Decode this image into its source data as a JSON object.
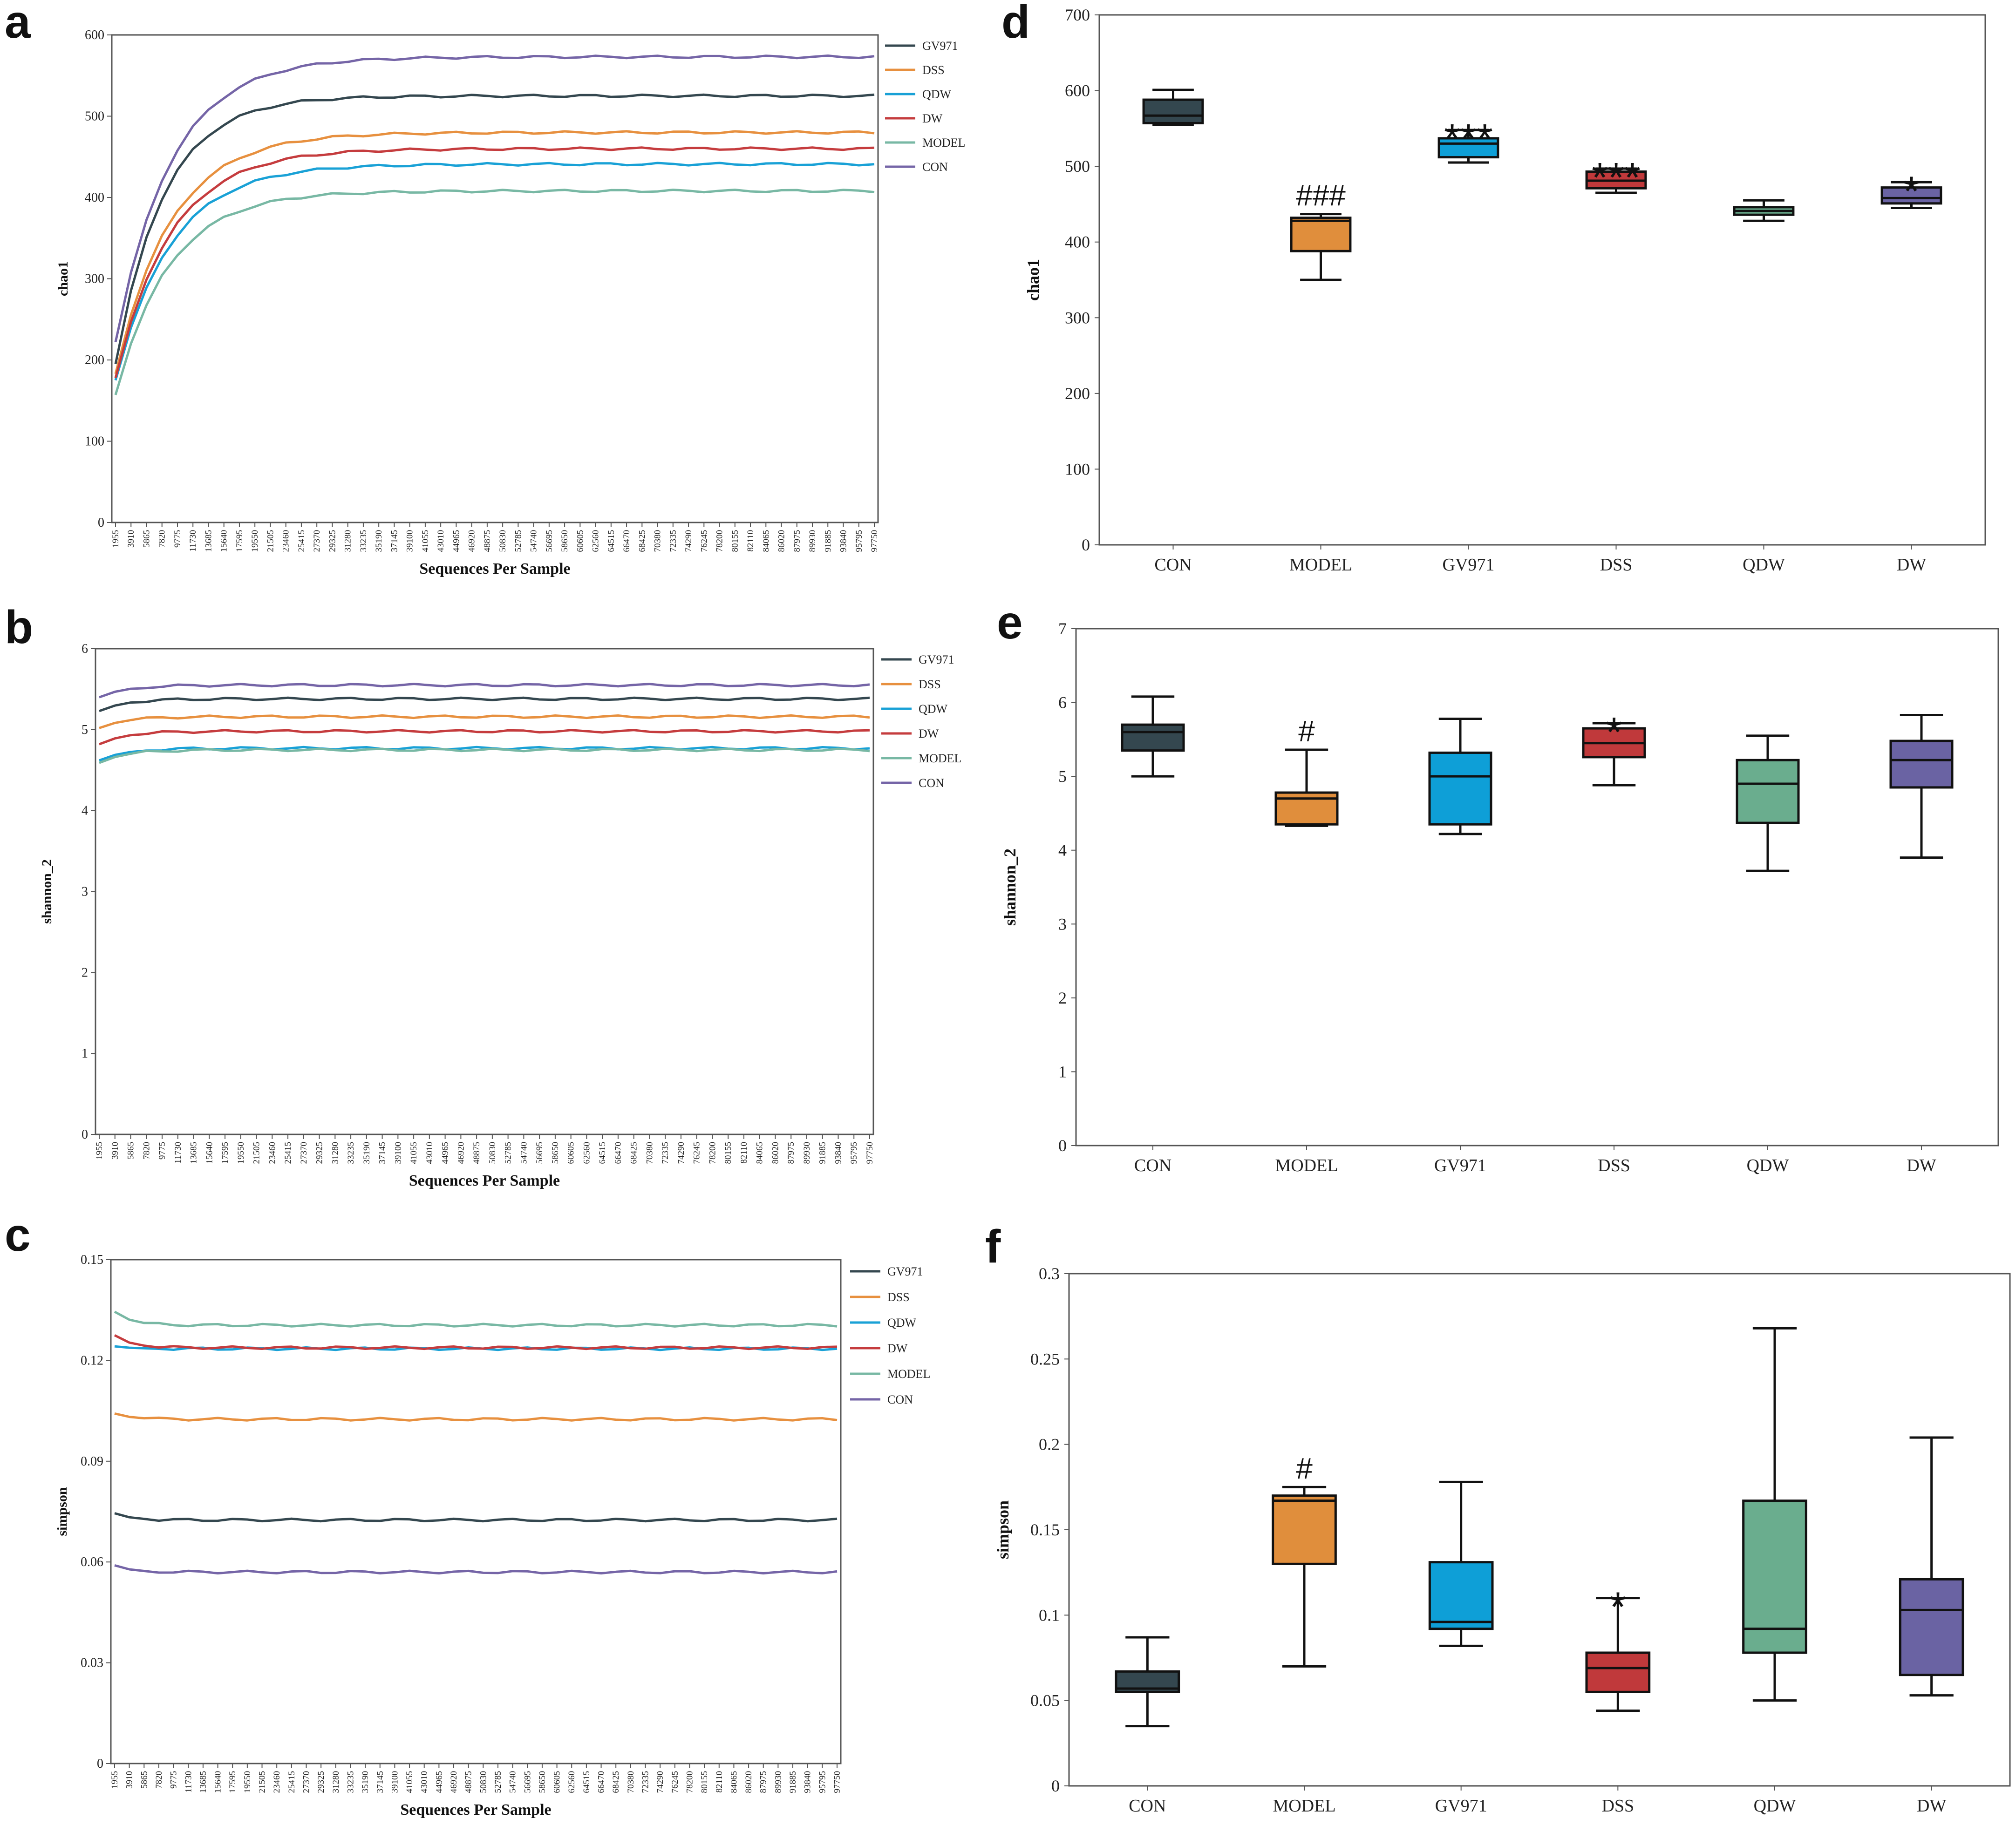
{
  "panels": {
    "a": "a",
    "b": "b",
    "c": "c",
    "d": "d",
    "e": "e",
    "f": "f"
  },
  "colors": {
    "GV971": "#34474f",
    "DSS": "#e7903f",
    "QDW": "#19a1d6",
    "DW": "#c53c3e",
    "MODEL": "#78b8a4",
    "CON": "#7565a7"
  },
  "box_fills": {
    "CON": "#34474f",
    "MODEL": "#e08e3c",
    "GV971": "#0e9fd7",
    "DSS": "#c0393b",
    "QDW": "#6aad8e",
    "DW": "#6a63a3"
  },
  "chart_data": [
    {
      "id": "a",
      "type": "line",
      "xlabel": "Sequences Per Sample",
      "ylabel": "chao1",
      "ylim": [
        0,
        600
      ],
      "yticks": [
        0,
        100,
        200,
        300,
        400,
        500,
        600
      ],
      "x_ticks": [
        "1955",
        "3910",
        "5865",
        "7820",
        "9775",
        "11730",
        "13685",
        "15640",
        "17595",
        "19550",
        "21505",
        "23460",
        "25415",
        "27370",
        "29325",
        "31280",
        "33235",
        "35190",
        "37145",
        "39100",
        "41055",
        "43010",
        "44965",
        "46920",
        "48875",
        "50830",
        "52785",
        "54740",
        "56695",
        "58650",
        "60605",
        "62560",
        "64515",
        "66470",
        "68425",
        "70380",
        "72335",
        "74290",
        "76245",
        "78200",
        "80155",
        "82110",
        "84065",
        "86020",
        "87975",
        "89930",
        "91885",
        "93840",
        "95795",
        "97750"
      ],
      "legend": [
        "GV971",
        "DSS",
        "QDW",
        "DW",
        "MODEL",
        "CON"
      ],
      "series": [
        {
          "name": "GV971",
          "start": 195,
          "plateau": 525,
          "k": 0.32
        },
        {
          "name": "DSS",
          "start": 183,
          "plateau": 480,
          "k": 0.28
        },
        {
          "name": "QDW",
          "start": 175,
          "plateau": 441,
          "k": 0.28
        },
        {
          "name": "DW",
          "start": 178,
          "plateau": 460,
          "k": 0.28
        },
        {
          "name": "MODEL",
          "start": 157,
          "plateau": 408,
          "k": 0.29
        },
        {
          "name": "CON",
          "start": 222,
          "plateau": 573,
          "k": 0.28
        }
      ]
    },
    {
      "id": "b",
      "type": "line",
      "xlabel": "Sequences Per Sample",
      "ylabel": "shannon_2",
      "ylim": [
        0,
        6
      ],
      "yticks": [
        0,
        1,
        2,
        3,
        4,
        5,
        6
      ],
      "x_ticks": [
        "1955",
        "3910",
        "5865",
        "7820",
        "9775",
        "11730",
        "13685",
        "15640",
        "17595",
        "19550",
        "21505",
        "23460",
        "25415",
        "27370",
        "29325",
        "31280",
        "33235",
        "35190",
        "37145",
        "39100",
        "41055",
        "43010",
        "44965",
        "46920",
        "48875",
        "50830",
        "52785",
        "54740",
        "56695",
        "58650",
        "60605",
        "62560",
        "64515",
        "66470",
        "68425",
        "70380",
        "72335",
        "74290",
        "76245",
        "78200",
        "80155",
        "82110",
        "84065",
        "86020",
        "87975",
        "89930",
        "91885",
        "93840",
        "95795",
        "97750"
      ],
      "legend": [
        "GV971",
        "DSS",
        "QDW",
        "DW",
        "MODEL",
        "CON"
      ],
      "series": [
        {
          "name": "GV971",
          "start": 5.23,
          "plateau": 5.38,
          "k": 0.6
        },
        {
          "name": "DSS",
          "start": 5.02,
          "plateau": 5.16,
          "k": 0.6
        },
        {
          "name": "QDW",
          "start": 4.62,
          "plateau": 4.77,
          "k": 0.6
        },
        {
          "name": "DW",
          "start": 4.82,
          "plateau": 4.98,
          "k": 0.6
        },
        {
          "name": "MODEL",
          "start": 4.59,
          "plateau": 4.75,
          "k": 0.6
        },
        {
          "name": "CON",
          "start": 5.4,
          "plateau": 5.55,
          "k": 0.6
        }
      ]
    },
    {
      "id": "c",
      "type": "line",
      "xlabel": "Sequences Per Sample",
      "ylabel": "simpson",
      "ylim": [
        0,
        0.15
      ],
      "yticks": [
        0,
        0.03,
        0.06,
        0.09,
        0.12,
        0.15
      ],
      "x_ticks": [
        "1955",
        "3910",
        "5865",
        "7820",
        "9775",
        "11730",
        "13685",
        "15640",
        "17595",
        "19550",
        "21505",
        "23460",
        "25415",
        "27370",
        "29325",
        "31280",
        "33235",
        "35190",
        "37145",
        "39100",
        "41055",
        "43010",
        "44965",
        "46920",
        "48875",
        "50830",
        "52785",
        "54740",
        "56695",
        "58650",
        "60605",
        "62560",
        "64515",
        "66470",
        "68425",
        "70380",
        "72335",
        "74290",
        "76245",
        "78200",
        "80155",
        "82110",
        "84065",
        "86020",
        "87975",
        "89930",
        "91885",
        "93840",
        "95795",
        "97750"
      ],
      "legend": [
        "GV971",
        "DSS",
        "QDW",
        "DW",
        "MODEL",
        "CON"
      ],
      "series": [
        {
          "name": "GV971",
          "start": 0.0745,
          "plateau": 0.0725,
          "k": 0.9
        },
        {
          "name": "DSS",
          "start": 0.1042,
          "plateau": 0.1025,
          "k": 0.9
        },
        {
          "name": "QDW",
          "start": 0.1242,
          "plateau": 0.1235,
          "k": 0.9
        },
        {
          "name": "DW",
          "start": 0.1275,
          "plateau": 0.1238,
          "k": 0.9
        },
        {
          "name": "MODEL",
          "start": 0.1345,
          "plateau": 0.1305,
          "k": 0.9
        },
        {
          "name": "CON",
          "start": 0.059,
          "plateau": 0.057,
          "k": 0.9
        }
      ]
    },
    {
      "id": "d",
      "type": "box",
      "ylabel": "chao1",
      "ylim": [
        0,
        700
      ],
      "yticks": [
        0,
        100,
        200,
        300,
        400,
        500,
        600,
        700
      ],
      "categories": [
        "CON",
        "MODEL",
        "GV971",
        "DSS",
        "QDW",
        "DW"
      ],
      "boxes": [
        {
          "name": "CON",
          "min": 555,
          "q1": 557,
          "median": 567,
          "q3": 588,
          "max": 601,
          "sig": ""
        },
        {
          "name": "MODEL",
          "min": 350,
          "q1": 388,
          "median": 428,
          "q3": 432,
          "max": 437,
          "sig": "###"
        },
        {
          "name": "GV971",
          "min": 505,
          "q1": 512,
          "median": 530,
          "q3": 537,
          "max": 548,
          "sig": "***"
        },
        {
          "name": "DSS",
          "min": 465,
          "q1": 471,
          "median": 481,
          "q3": 493,
          "max": 497,
          "sig": "***"
        },
        {
          "name": "QDW",
          "min": 428,
          "q1": 436,
          "median": 441,
          "q3": 446,
          "max": 455,
          "sig": ""
        },
        {
          "name": "DW",
          "min": 445,
          "q1": 451,
          "median": 458,
          "q3": 472,
          "max": 479,
          "sig": "*"
        }
      ]
    },
    {
      "id": "e",
      "type": "box",
      "ylabel": "shannon_2",
      "ylim": [
        0,
        7
      ],
      "yticks": [
        0,
        1,
        2,
        3,
        4,
        5,
        6,
        7
      ],
      "categories": [
        "CON",
        "MODEL",
        "GV971",
        "DSS",
        "QDW",
        "DW"
      ],
      "boxes": [
        {
          "name": "CON",
          "min": 5.0,
          "q1": 5.35,
          "median": 5.6,
          "q3": 5.7,
          "max": 6.08,
          "sig": ""
        },
        {
          "name": "MODEL",
          "min": 4.33,
          "q1": 4.35,
          "median": 4.7,
          "q3": 4.78,
          "max": 5.36,
          "sig": "#"
        },
        {
          "name": "GV971",
          "min": 4.22,
          "q1": 4.35,
          "median": 5.0,
          "q3": 5.32,
          "max": 5.78,
          "sig": ""
        },
        {
          "name": "DSS",
          "min": 4.88,
          "q1": 5.26,
          "median": 5.45,
          "q3": 5.65,
          "max": 5.72,
          "sig": "*"
        },
        {
          "name": "QDW",
          "min": 3.72,
          "q1": 4.37,
          "median": 4.9,
          "q3": 5.22,
          "max": 5.55,
          "sig": ""
        },
        {
          "name": "DW",
          "min": 3.9,
          "q1": 4.85,
          "median": 5.22,
          "q3": 5.48,
          "max": 5.83,
          "sig": ""
        }
      ]
    },
    {
      "id": "f",
      "type": "box",
      "ylabel": "simpson",
      "ylim": [
        0,
        0.3
      ],
      "yticks": [
        0,
        0.05,
        0.1,
        0.15,
        0.2,
        0.25,
        0.3
      ],
      "ytick_labels": [
        "0",
        "0.05",
        "0.1",
        "0.15",
        "0.2",
        "0.25",
        "0.3"
      ],
      "categories": [
        "CON",
        "MODEL",
        "GV971",
        "DSS",
        "QDW",
        "DW"
      ],
      "boxes": [
        {
          "name": "CON",
          "min": 0.035,
          "q1": 0.055,
          "median": 0.057,
          "q3": 0.067,
          "max": 0.087,
          "sig": ""
        },
        {
          "name": "MODEL",
          "min": 0.07,
          "q1": 0.13,
          "median": 0.167,
          "q3": 0.17,
          "max": 0.175,
          "sig": "#"
        },
        {
          "name": "GV971",
          "min": 0.082,
          "q1": 0.092,
          "median": 0.096,
          "q3": 0.131,
          "max": 0.178,
          "sig": ""
        },
        {
          "name": "DSS",
          "min": 0.044,
          "q1": 0.055,
          "median": 0.069,
          "q3": 0.078,
          "max": 0.11,
          "sig": "*"
        },
        {
          "name": "QDW",
          "min": 0.05,
          "q1": 0.078,
          "median": 0.092,
          "q3": 0.167,
          "max": 0.268,
          "sig": ""
        },
        {
          "name": "DW",
          "min": 0.053,
          "q1": 0.065,
          "median": 0.103,
          "q3": 0.121,
          "max": 0.204,
          "sig": ""
        }
      ]
    }
  ]
}
